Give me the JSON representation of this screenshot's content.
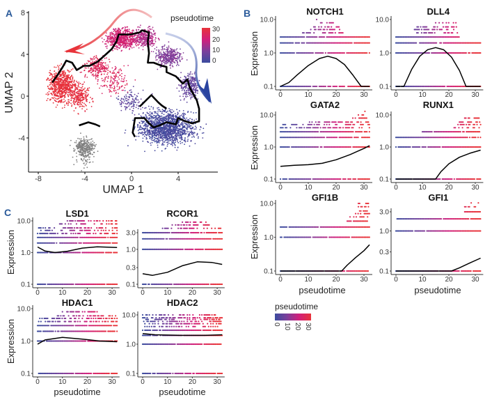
{
  "panels": {
    "a": "A",
    "b": "B",
    "c": "C"
  },
  "colors": {
    "pt0": "#3b4c9e",
    "pt10": "#7b3f9b",
    "pt20": "#d01f7c",
    "pt30": "#e8333a",
    "unassigned": "#808080",
    "trajectory": "#000000"
  },
  "chart_data": [
    {
      "type": "scatter",
      "panel": "A",
      "xlabel": "UMAP 1",
      "ylabel": "UMAP 2",
      "xticks": [
        -8,
        -4,
        0,
        4
      ],
      "yticks": [
        -4,
        0,
        4,
        8
      ],
      "xlim": [
        -8.8,
        7.4
      ],
      "ylim": [
        -7.3,
        8
      ],
      "color_by": "pseudotime",
      "legend": {
        "title": "pseudotime",
        "ticks": [
          30,
          20,
          10,
          0
        ],
        "placement": "top-right"
      },
      "trajectory": [
        [
          [
            -6.8,
            1.3
          ],
          [
            -6.3,
            2.1
          ],
          [
            -5.9,
            2.8
          ],
          [
            -5.6,
            3.4
          ],
          [
            -5.1,
            3.2
          ],
          [
            -4.7,
            2.5
          ],
          [
            -4.1,
            2.9
          ],
          [
            -3.6,
            2.9
          ],
          [
            -2.9,
            3.3
          ],
          [
            -2.3,
            3.9
          ],
          [
            -1.7,
            4.5
          ],
          [
            -1.3,
            5.2
          ],
          [
            -1.1,
            5.9
          ],
          [
            -0.1,
            5.9
          ],
          [
            0.7,
            6.1
          ],
          [
            0.9,
            6.3
          ],
          [
            1.5,
            6.1
          ],
          [
            1.4,
            5.2
          ],
          [
            1.5,
            4.1
          ],
          [
            1.4,
            3.2
          ],
          [
            1.9,
            3.2
          ],
          [
            2.6,
            2.9
          ],
          [
            3.0,
            2.8
          ],
          [
            3.0,
            2.3
          ],
          [
            3.8,
            1.9
          ],
          [
            4.4,
            1.2
          ],
          [
            4.8,
            1.6
          ],
          [
            5.0,
            0.8
          ],
          [
            5.6,
            -0.4
          ],
          [
            5.8,
            -1.2
          ],
          [
            5.8,
            -2.4
          ],
          [
            5.2,
            -2.6
          ],
          [
            4.6,
            -2.4
          ],
          [
            4.0,
            -2.1
          ],
          [
            3.8,
            -2.7
          ],
          [
            3.0,
            -2.5
          ],
          [
            2.4,
            -2.8
          ],
          [
            1.9,
            -3.0
          ],
          [
            1.5,
            -2.6
          ],
          [
            1.1,
            -2.1
          ],
          [
            0.3,
            -2.1
          ],
          [
            0.1,
            -3.5
          ],
          [
            0.3,
            -3.9
          ]
        ],
        [
          [
            0.7,
            -1.0
          ],
          [
            1.7,
            0.1
          ],
          [
            2.3,
            -0.6
          ],
          [
            2.6,
            -0.9
          ],
          [
            3.0,
            -1.2
          ]
        ],
        [
          [
            -4.5,
            -2.8
          ],
          [
            -3.7,
            -2.5
          ],
          [
            -3.1,
            -2.7
          ],
          [
            -2.7,
            -2.9
          ]
        ]
      ]
    },
    {
      "type": "scatter",
      "panel": "B",
      "xlabel": "pseudotime",
      "ylabel": "Expression",
      "yscale": "log",
      "xticks": [
        "0",
        "10",
        "20",
        "30"
      ],
      "legend": {
        "title": "pseudotime",
        "ticks": [
          "0",
          "10",
          "20",
          "30"
        ],
        "placement": "bottom-left"
      },
      "genes": [
        {
          "name": "NOTCH1",
          "yticks": [
            10,
            1,
            0.1
          ],
          "ytick_labels": [
            "10.0",
            "1.0",
            "0.1"
          ],
          "levels": [
            [
              0.1,
              0,
              32
            ],
            [
              1,
              0,
              32
            ],
            [
              2,
              0,
              32
            ],
            [
              3,
              0,
              32
            ],
            [
              4,
              8,
              24
            ],
            [
              5,
              10,
              23
            ],
            [
              6,
              12,
              21
            ],
            [
              8,
              14,
              19
            ],
            [
              10,
              13,
              13
            ]
          ],
          "curve": [
            [
              0,
              0.1
            ],
            [
              3,
              0.13
            ],
            [
              6,
              0.22
            ],
            [
              10,
              0.42
            ],
            [
              14,
              0.68
            ],
            [
              17,
              0.8
            ],
            [
              20,
              0.68
            ],
            [
              23,
              0.45
            ],
            [
              26,
              0.22
            ],
            [
              29,
              0.1
            ],
            [
              32,
              0.1
            ]
          ]
        },
        {
          "name": "DLL4",
          "yticks": [
            10,
            1,
            0.1
          ],
          "ytick_labels": [
            "10.0",
            "1.0",
            "0.1"
          ],
          "levels": [
            [
              0.1,
              0,
              32
            ],
            [
              1,
              0,
              32
            ],
            [
              2,
              0,
              32
            ],
            [
              3,
              0,
              24
            ],
            [
              4,
              7,
              24
            ],
            [
              5,
              7,
              23
            ],
            [
              6,
              8,
              23
            ],
            [
              8,
              15,
              23
            ],
            [
              10,
              17,
              17
            ]
          ],
          "curve": [
            [
              0,
              0.1
            ],
            [
              3,
              0.1
            ],
            [
              6,
              0.33
            ],
            [
              9,
              0.8
            ],
            [
              12,
              1.25
            ],
            [
              15,
              1.45
            ],
            [
              18,
              1.25
            ],
            [
              21,
              0.75
            ],
            [
              24,
              0.3
            ],
            [
              26.5,
              0.1
            ],
            [
              32,
              0.1
            ]
          ]
        },
        {
          "name": "GATA2",
          "yticks": [
            10,
            1,
            0.1
          ],
          "ytick_labels": [
            "10.0",
            "1.0",
            "0.1"
          ],
          "levels": [
            [
              0.1,
              0,
              32
            ],
            [
              1,
              0,
              32
            ],
            [
              2,
              0,
              32
            ],
            [
              3,
              0,
              32
            ],
            [
              4,
              0,
              32
            ],
            [
              5,
              0,
              32
            ],
            [
              6,
              10,
              32
            ],
            [
              8,
              26,
              32
            ],
            [
              10,
              28,
              31
            ],
            [
              13,
              29,
              31
            ]
          ],
          "curve": [
            [
              0,
              0.25
            ],
            [
              5,
              0.27
            ],
            [
              10,
              0.28
            ],
            [
              15,
              0.31
            ],
            [
              20,
              0.4
            ],
            [
              25,
              0.58
            ],
            [
              30,
              0.9
            ],
            [
              32,
              1.1
            ]
          ]
        },
        {
          "name": "RUNX1",
          "yticks": [
            10,
            1,
            0.1
          ],
          "ytick_labels": [
            "10.0",
            "1.0",
            "0.1"
          ],
          "levels": [
            [
              0.1,
              0,
              32
            ],
            [
              1,
              0,
              32
            ],
            [
              2,
              0,
              32
            ],
            [
              3,
              10,
              32
            ],
            [
              4,
              22,
              32
            ],
            [
              5,
              23,
              32
            ],
            [
              6,
              24,
              32
            ],
            [
              8,
              26,
              32
            ]
          ],
          "curve": [
            [
              0,
              0.1
            ],
            [
              15,
              0.1
            ],
            [
              17,
              0.17
            ],
            [
              20,
              0.3
            ],
            [
              24,
              0.48
            ],
            [
              28,
              0.64
            ],
            [
              32,
              0.8
            ]
          ]
        },
        {
          "name": "GFI1B",
          "yticks": [
            10,
            1,
            0.1
          ],
          "ytick_labels": [
            "10.0",
            "1.0",
            "0.1"
          ],
          "levels": [
            [
              0.1,
              0,
              32
            ],
            [
              1,
              0,
              32
            ],
            [
              2,
              0,
              32
            ],
            [
              3,
              24,
              32
            ],
            [
              4,
              25,
              32
            ],
            [
              5,
              27,
              32
            ],
            [
              6,
              28,
              32
            ],
            [
              8,
              28,
              32
            ],
            [
              10,
              28,
              32
            ]
          ],
          "curve": [
            [
              0,
              0.1
            ],
            [
              22,
              0.1
            ],
            [
              24,
              0.15
            ],
            [
              27,
              0.25
            ],
            [
              30,
              0.4
            ],
            [
              32,
              0.6
            ]
          ]
        },
        {
          "name": "GFI1",
          "yticks": [
            3,
            1,
            0.3,
            0.1
          ],
          "ytick_labels": [
            "3.0",
            "1.0",
            "0.3",
            "0.1"
          ],
          "levels": [
            [
              0.1,
              0,
              32
            ],
            [
              1,
              0,
              32
            ],
            [
              2,
              0,
              32
            ],
            [
              3,
              26,
              32
            ],
            [
              4,
              26,
              32
            ],
            [
              5,
              28,
              32
            ]
          ],
          "curve": [
            [
              0,
              0.1
            ],
            [
              21,
              0.1
            ],
            [
              24,
              0.12
            ],
            [
              28,
              0.16
            ],
            [
              32,
              0.21
            ]
          ]
        }
      ]
    },
    {
      "type": "scatter",
      "panel": "C",
      "xlabel": "pseudotime",
      "ylabel": "Expression",
      "yscale": "log",
      "xticks": [
        "0",
        "10",
        "20",
        "30"
      ],
      "genes": [
        {
          "name": "LSD1",
          "yticks": [
            10,
            1,
            0.1
          ],
          "ytick_labels": [
            "10.0",
            "1.0",
            "0.1"
          ],
          "levels": [
            [
              0.1,
              0,
              32
            ],
            [
              1,
              0,
              32
            ],
            [
              2,
              0,
              32
            ],
            [
              3,
              0,
              32
            ],
            [
              4,
              0,
              32
            ],
            [
              5,
              0,
              32
            ],
            [
              6,
              0,
              32
            ],
            [
              8,
              8,
              32
            ],
            [
              10,
              12,
              32
            ]
          ],
          "curve": [
            [
              0,
              1.5
            ],
            [
              3,
              1.12
            ],
            [
              7,
              1.0
            ],
            [
              12,
              1.1
            ],
            [
              18,
              1.38
            ],
            [
              24,
              1.52
            ],
            [
              32,
              1.45
            ]
          ]
        },
        {
          "name": "RCOR1",
          "yticks": [
            3,
            1,
            0.3,
            0.1
          ],
          "ytick_labels": [
            "3.0",
            "1.0",
            "0.3",
            "0.1"
          ],
          "levels": [
            [
              0.1,
              0,
              32
            ],
            [
              1,
              0,
              32
            ],
            [
              2,
              0,
              32
            ],
            [
              3,
              0,
              32
            ],
            [
              4,
              8,
              32
            ],
            [
              5,
              11,
              28
            ],
            [
              6,
              16,
              26
            ]
          ],
          "curve": [
            [
              0,
              0.2
            ],
            [
              4,
              0.18
            ],
            [
              10,
              0.22
            ],
            [
              16,
              0.34
            ],
            [
              22,
              0.44
            ],
            [
              28,
              0.42
            ],
            [
              32,
              0.37
            ]
          ]
        },
        {
          "name": "HDAC1",
          "yticks": [
            10,
            1,
            0.1
          ],
          "ytick_labels": [
            "10.0",
            "1.0",
            "0.1"
          ],
          "levels": [
            [
              0.1,
              0,
              32
            ],
            [
              1,
              0,
              32
            ],
            [
              2,
              0,
              32
            ],
            [
              3,
              0,
              32
            ],
            [
              4,
              0,
              32
            ],
            [
              5,
              0,
              32
            ],
            [
              6,
              8,
              32
            ],
            [
              8,
              10,
              24
            ]
          ],
          "curve": [
            [
              0,
              0.8
            ],
            [
              3,
              1.08
            ],
            [
              10,
              1.3
            ],
            [
              18,
              1.15
            ],
            [
              25,
              1.0
            ],
            [
              32,
              0.95
            ]
          ]
        },
        {
          "name": "HDAC2",
          "yticks": [
            10,
            1,
            0.1
          ],
          "ytick_labels": [
            "10.0",
            "1.0",
            "0.1"
          ],
          "levels": [
            [
              0.1,
              0,
              32
            ],
            [
              1,
              0,
              32
            ],
            [
              2,
              0,
              32
            ],
            [
              3,
              0,
              32
            ],
            [
              4,
              0,
              32
            ],
            [
              5,
              0,
              32
            ],
            [
              6,
              0,
              32
            ],
            [
              7,
              0,
              32
            ],
            [
              8,
              0,
              32
            ],
            [
              10,
              0,
              32
            ],
            [
              12,
              0,
              2
            ]
          ],
          "curve": [
            [
              0,
              2.3
            ],
            [
              5,
              2.1
            ],
            [
              15,
              2.0
            ],
            [
              25,
              2.0
            ],
            [
              32,
              2.1
            ]
          ]
        }
      ]
    }
  ]
}
